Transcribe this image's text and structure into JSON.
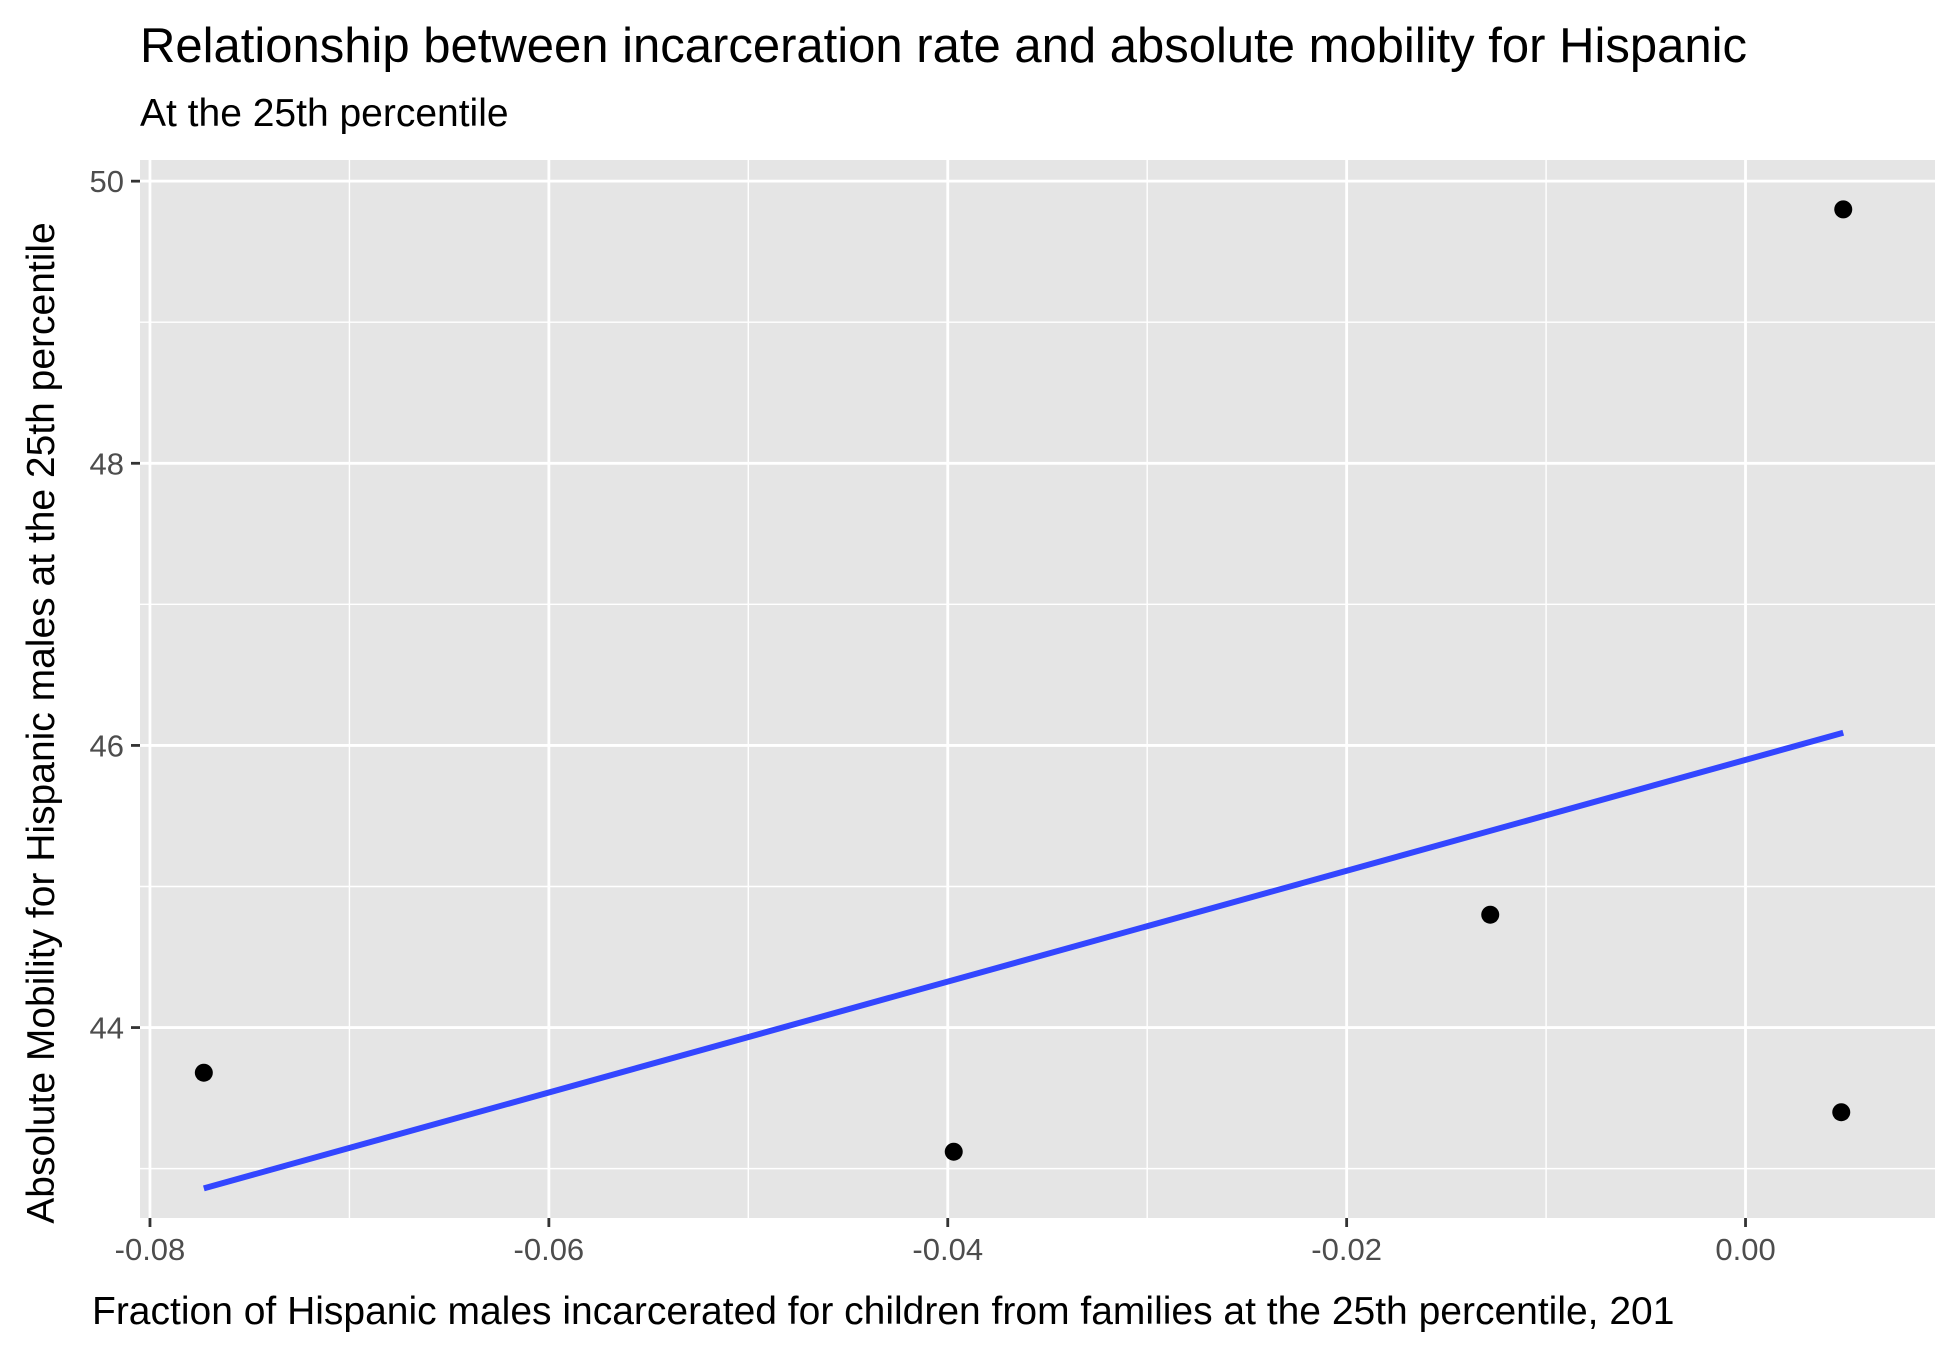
{
  "chart_data": {
    "type": "scatter",
    "title": "Relationship between incarceration rate and absolute mobility for Hispanic",
    "subtitle": "At the 25th percentile",
    "xlabel": "Fraction of Hispanic males incarcerated for children from families at the 25th percentile, 201",
    "ylabel": "Absolute Mobility for Hispanic males at the 25th percentile",
    "xlim": [
      -0.0805,
      0.0095
    ],
    "ylim": [
      42.65,
      50.15
    ],
    "x_ticks": [
      -0.08,
      -0.06,
      -0.04,
      -0.02,
      0.0
    ],
    "x_tick_labels": [
      "-0.08",
      "-0.06",
      "-0.04",
      "-0.02",
      "0.00"
    ],
    "y_ticks": [
      44,
      46,
      48,
      50
    ],
    "y_tick_labels": [
      "44",
      "46",
      "48",
      "50"
    ],
    "points": [
      {
        "x": -0.0773,
        "y": 43.68
      },
      {
        "x": -0.0397,
        "y": 43.12
      },
      {
        "x": -0.0128,
        "y": 44.8
      },
      {
        "x": 0.0049,
        "y": 49.8
      },
      {
        "x": 0.0048,
        "y": 43.4
      }
    ],
    "trend_line": {
      "x": [
        -0.0773,
        0.0049
      ],
      "y": [
        42.86,
        46.09
      ],
      "color": "#3346FF"
    },
    "grid": true,
    "panel_background": "#E5E5E5",
    "grid_color": "#FFFFFF",
    "point_color": "#000000"
  }
}
